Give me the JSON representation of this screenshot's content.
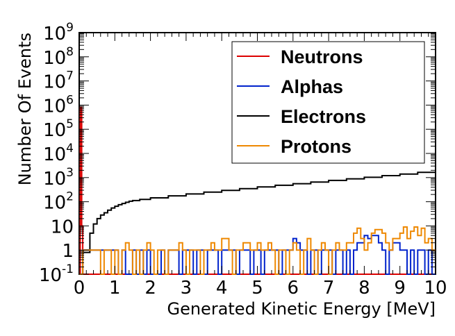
{
  "chart_data": {
    "type": "histogram",
    "xlabel": "Generated Kinetic Energy [MeV]",
    "ylabel": "Number Of Events",
    "xlim": [
      0,
      10
    ],
    "ylim": [
      0.1,
      1000000000
    ],
    "yscale": "log",
    "grid": false,
    "legend_position": "top-right",
    "x_ticks": [
      0,
      1,
      2,
      3,
      4,
      5,
      6,
      7,
      8,
      9,
      10
    ],
    "x_tick_labels": [
      "0",
      "1",
      "2",
      "3",
      "4",
      "5",
      "6",
      "7",
      "8",
      "9",
      "10"
    ],
    "y_ticks": [
      {
        "value": 0.1,
        "base": "10",
        "exp": "-1"
      },
      {
        "value": 1,
        "base": "1",
        "exp": ""
      },
      {
        "value": 10,
        "base": "10",
        "exp": ""
      },
      {
        "value": 100,
        "base": "10",
        "exp": "2"
      },
      {
        "value": 1000,
        "base": "10",
        "exp": "3"
      },
      {
        "value": 10000,
        "base": "10",
        "exp": "4"
      },
      {
        "value": 100000,
        "base": "10",
        "exp": "5"
      },
      {
        "value": 1000000,
        "base": "10",
        "exp": "6"
      },
      {
        "value": 10000000,
        "base": "10",
        "exp": "7"
      },
      {
        "value": 100000000,
        "base": "10",
        "exp": "8"
      },
      {
        "value": 1000000000,
        "base": "10",
        "exp": "9"
      }
    ],
    "series": [
      {
        "name": "Neutrons",
        "color": "#dd0000",
        "points": [
          [
            0.0,
            0.1
          ],
          [
            0.03,
            800000
          ],
          [
            0.07,
            10
          ],
          [
            0.1,
            0.1
          ],
          [
            10.0,
            0.1
          ]
        ]
      },
      {
        "name": "Alphas",
        "color": "#0022cc",
        "points": [
          [
            0.0,
            0.1
          ],
          [
            0.1,
            1
          ],
          [
            1.1,
            0.1
          ],
          [
            1.2,
            1
          ],
          [
            1.3,
            0.1
          ],
          [
            1.5,
            1
          ],
          [
            1.6,
            0.1
          ],
          [
            1.7,
            1
          ],
          [
            1.8,
            0.1
          ],
          [
            1.9,
            1
          ],
          [
            2.0,
            0.1
          ],
          [
            2.3,
            1
          ],
          [
            2.4,
            0.1
          ],
          [
            2.5,
            1
          ],
          [
            2.8,
            0.1
          ],
          [
            2.9,
            1
          ],
          [
            3.2,
            0.1
          ],
          [
            3.3,
            1
          ],
          [
            3.5,
            0.1
          ],
          [
            3.6,
            1
          ],
          [
            3.9,
            0.1
          ],
          [
            4.0,
            1
          ],
          [
            4.4,
            0.1
          ],
          [
            4.5,
            1
          ],
          [
            4.8,
            0.1
          ],
          [
            4.9,
            1
          ],
          [
            5.1,
            0.1
          ],
          [
            5.2,
            1
          ],
          [
            5.6,
            0.1
          ],
          [
            5.7,
            1
          ],
          [
            6.0,
            3
          ],
          [
            6.1,
            2
          ],
          [
            6.2,
            1
          ],
          [
            6.4,
            0.1
          ],
          [
            6.5,
            1
          ],
          [
            6.7,
            0.1
          ],
          [
            6.8,
            1
          ],
          [
            7.1,
            0.1
          ],
          [
            7.2,
            1
          ],
          [
            7.4,
            0.1
          ],
          [
            7.5,
            1
          ],
          [
            7.6,
            0.1
          ],
          [
            7.7,
            1
          ],
          [
            7.8,
            2
          ],
          [
            8.0,
            4
          ],
          [
            8.1,
            3
          ],
          [
            8.2,
            4
          ],
          [
            8.4,
            2
          ],
          [
            8.5,
            1
          ],
          [
            8.6,
            0.1
          ],
          [
            8.7,
            1
          ],
          [
            8.8,
            2
          ],
          [
            9.0,
            1
          ],
          [
            9.2,
            0.1
          ],
          [
            9.3,
            1
          ],
          [
            9.4,
            0.1
          ],
          [
            9.5,
            1
          ],
          [
            9.7,
            0.1
          ],
          [
            9.8,
            1
          ],
          [
            9.9,
            0.1
          ],
          [
            10.0,
            0.1
          ]
        ]
      },
      {
        "name": "Electrons",
        "color": "#000000",
        "points": [
          [
            0.0,
            0.1
          ],
          [
            0.1,
            0.8
          ],
          [
            0.2,
            0.8
          ],
          [
            0.3,
            5
          ],
          [
            0.4,
            12
          ],
          [
            0.5,
            20
          ],
          [
            0.6,
            28
          ],
          [
            0.7,
            35
          ],
          [
            0.8,
            45
          ],
          [
            0.9,
            55
          ],
          [
            1.0,
            65
          ],
          [
            1.1,
            75
          ],
          [
            1.2,
            85
          ],
          [
            1.3,
            95
          ],
          [
            1.4,
            105
          ],
          [
            1.5,
            112
          ],
          [
            1.7,
            125
          ],
          [
            2.0,
            145
          ],
          [
            2.5,
            175
          ],
          [
            3.0,
            210
          ],
          [
            3.5,
            250
          ],
          [
            4.0,
            295
          ],
          [
            4.5,
            350
          ],
          [
            5.0,
            410
          ],
          [
            5.5,
            480
          ],
          [
            6.0,
            560
          ],
          [
            6.5,
            650
          ],
          [
            7.0,
            760
          ],
          [
            7.5,
            890
          ],
          [
            8.0,
            1030
          ],
          [
            8.5,
            1200
          ],
          [
            9.0,
            1400
          ],
          [
            9.5,
            1650
          ],
          [
            10.0,
            2000
          ]
        ]
      },
      {
        "name": "Protons",
        "color": "#ee8800",
        "points": [
          [
            0.0,
            0.1
          ],
          [
            0.1,
            1
          ],
          [
            0.6,
            0.1
          ],
          [
            0.7,
            1
          ],
          [
            0.9,
            0.1
          ],
          [
            1.0,
            1
          ],
          [
            1.1,
            0.1
          ],
          [
            1.2,
            1
          ],
          [
            1.3,
            2
          ],
          [
            1.4,
            1
          ],
          [
            1.5,
            0.1
          ],
          [
            1.6,
            1
          ],
          [
            1.7,
            0.1
          ],
          [
            1.8,
            1
          ],
          [
            1.9,
            2
          ],
          [
            2.0,
            1
          ],
          [
            2.1,
            0.1
          ],
          [
            2.2,
            1
          ],
          [
            2.4,
            0.1
          ],
          [
            2.5,
            1
          ],
          [
            2.8,
            2
          ],
          [
            2.9,
            1
          ],
          [
            3.0,
            0.1
          ],
          [
            3.1,
            1
          ],
          [
            3.4,
            0.1
          ],
          [
            3.5,
            1
          ],
          [
            3.7,
            2
          ],
          [
            3.8,
            1
          ],
          [
            4.0,
            3
          ],
          [
            4.2,
            1
          ],
          [
            4.3,
            0.1
          ],
          [
            4.4,
            1
          ],
          [
            4.6,
            2
          ],
          [
            4.8,
            1
          ],
          [
            5.0,
            2
          ],
          [
            5.1,
            1
          ],
          [
            5.3,
            2
          ],
          [
            5.4,
            1
          ],
          [
            5.5,
            0.1
          ],
          [
            5.6,
            1
          ],
          [
            5.8,
            0.1
          ],
          [
            5.9,
            1
          ],
          [
            6.0,
            2
          ],
          [
            6.1,
            1
          ],
          [
            6.2,
            0.1
          ],
          [
            6.3,
            1
          ],
          [
            6.4,
            3
          ],
          [
            6.5,
            1
          ],
          [
            6.6,
            0.1
          ],
          [
            6.7,
            1
          ],
          [
            6.8,
            2
          ],
          [
            6.9,
            1
          ],
          [
            7.0,
            0.1
          ],
          [
            7.1,
            1
          ],
          [
            7.2,
            2
          ],
          [
            7.3,
            1
          ],
          [
            7.5,
            2
          ],
          [
            7.7,
            5
          ],
          [
            7.8,
            8
          ],
          [
            7.9,
            3
          ],
          [
            8.0,
            1
          ],
          [
            8.1,
            2
          ],
          [
            8.2,
            5
          ],
          [
            8.3,
            7
          ],
          [
            8.5,
            5
          ],
          [
            8.6,
            2
          ],
          [
            8.7,
            1
          ],
          [
            8.8,
            3
          ],
          [
            9.0,
            5
          ],
          [
            9.1,
            9
          ],
          [
            9.2,
            3
          ],
          [
            9.3,
            6
          ],
          [
            9.4,
            9
          ],
          [
            9.5,
            4
          ],
          [
            9.6,
            8
          ],
          [
            9.7,
            2
          ],
          [
            9.8,
            3
          ],
          [
            9.9,
            1
          ],
          [
            10.0,
            1
          ]
        ]
      }
    ]
  }
}
